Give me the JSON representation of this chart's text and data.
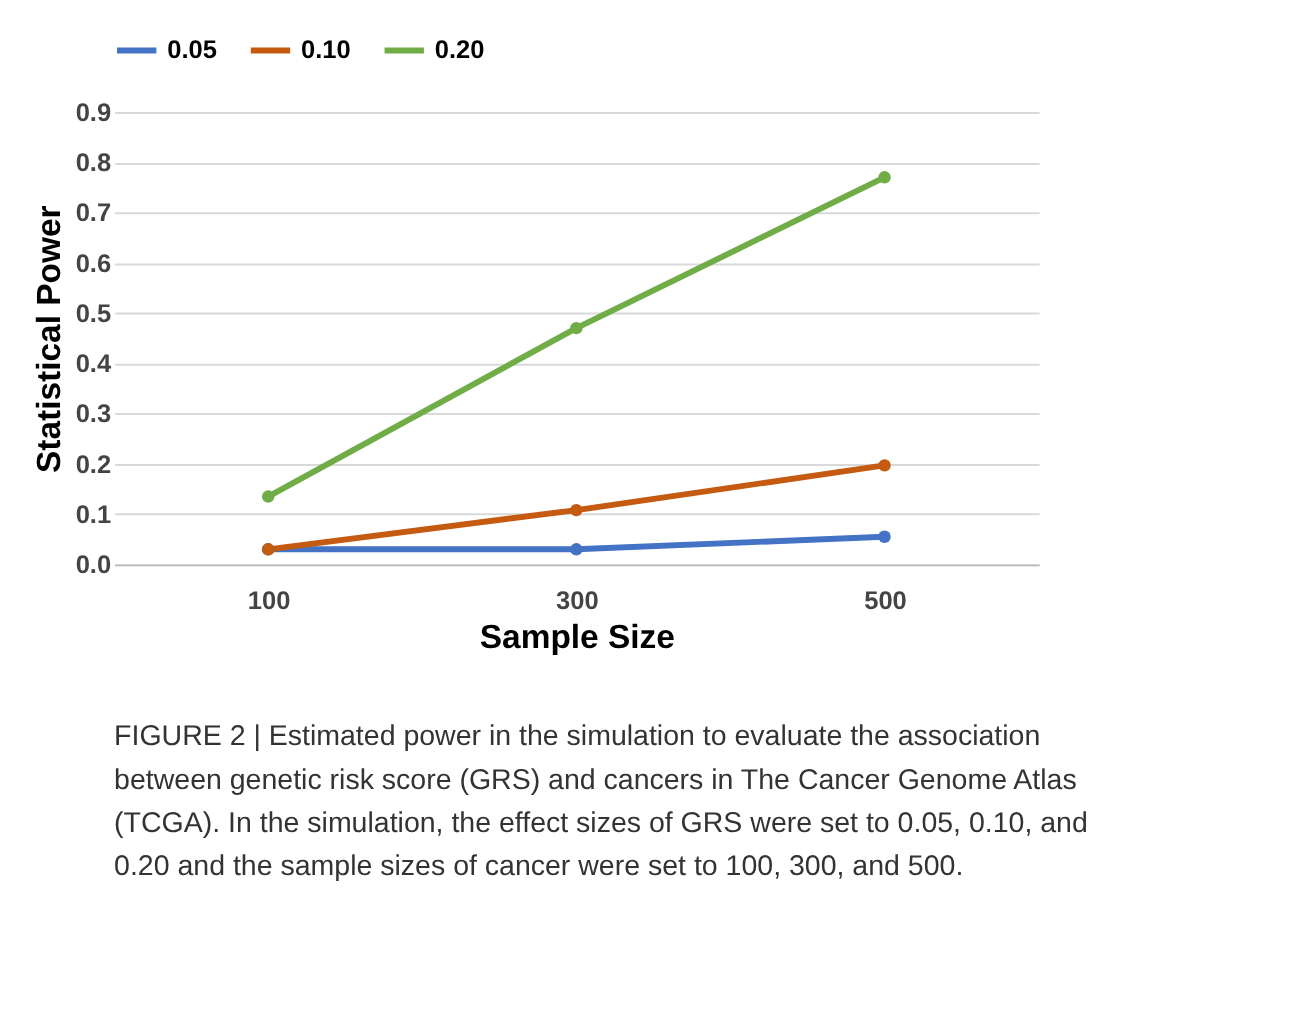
{
  "chart_data": {
    "type": "line",
    "xlabel": "Sample Size",
    "ylabel": "Statistical Power",
    "categories": [
      "100",
      "300",
      "500"
    ],
    "series": [
      {
        "name": "0.05",
        "color": "#4472c4",
        "values": [
          0.03,
          0.03,
          0.055
        ]
      },
      {
        "name": "0.10",
        "color": "#c55a11",
        "values": [
          0.03,
          0.108,
          0.197
        ]
      },
      {
        "name": "0.20",
        "color": "#70ad47",
        "values": [
          0.135,
          0.47,
          0.77
        ]
      }
    ],
    "ylim": [
      0,
      0.9
    ],
    "yticks": [
      {
        "value": 0,
        "label": "0.0"
      },
      0.1,
      0.2,
      0.3,
      0.4,
      0.5,
      0.6,
      0.7,
      0.8,
      0.9
    ],
    "grid": "y",
    "legend": "top",
    "marker": "circle",
    "line_style": "solid",
    "annotations": [
      "FIGURE 2 | Estimated power in the simulation to evaluate the association between genetic risk score (GRS) and cancers in The Cancer Genome Atlas (TCGA). In the simulation, the effect sizes of GRS were set to 0.05, 0.10, and 0.20 and the sample sizes of cancer were set to 100, 300, and 500."
    ]
  }
}
